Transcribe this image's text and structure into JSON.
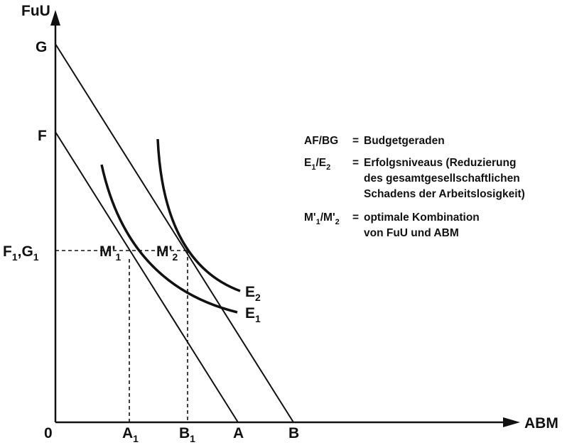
{
  "axes": {
    "y_label": "FuU",
    "x_label": "ABM",
    "origin": "0"
  },
  "y_ticks": {
    "g": "G",
    "f": "F",
    "f1g1": {
      "main1": "F",
      "sub1": "1",
      "sep": ",G",
      "sub2": "1"
    }
  },
  "x_ticks": {
    "a1": {
      "main": "A",
      "sub": "1"
    },
    "b1": {
      "main": "B",
      "sub": "1"
    },
    "a": "A",
    "b": "B"
  },
  "points": {
    "m1": {
      "main": "M'",
      "sub": "1"
    },
    "m2": {
      "main": "M'",
      "sub": "2"
    }
  },
  "curves": {
    "e1": {
      "main": "E",
      "sub": "1"
    },
    "e2": {
      "main": "E",
      "sub": "2"
    }
  },
  "legend": {
    "row1": {
      "key": "AF/BG",
      "eq": "=",
      "text": "Budgetgeraden"
    },
    "row2": {
      "key_e": "E",
      "key_s1": "1",
      "key_slash": "/E",
      "key_s2": "2",
      "eq": "=",
      "line1": "Erfolgsniveaus (Reduzierung",
      "line2": "des gesamtgesellschaftlichen",
      "line3": "Schadens der Arbeitslosigkeit)"
    },
    "row3": {
      "key_m": "M'",
      "key_s1": "1",
      "key_slash": "/M'",
      "key_s2": "2",
      "eq": "=",
      "line1": "optimale Kombination",
      "line2": "von FuU und ABM"
    }
  }
}
